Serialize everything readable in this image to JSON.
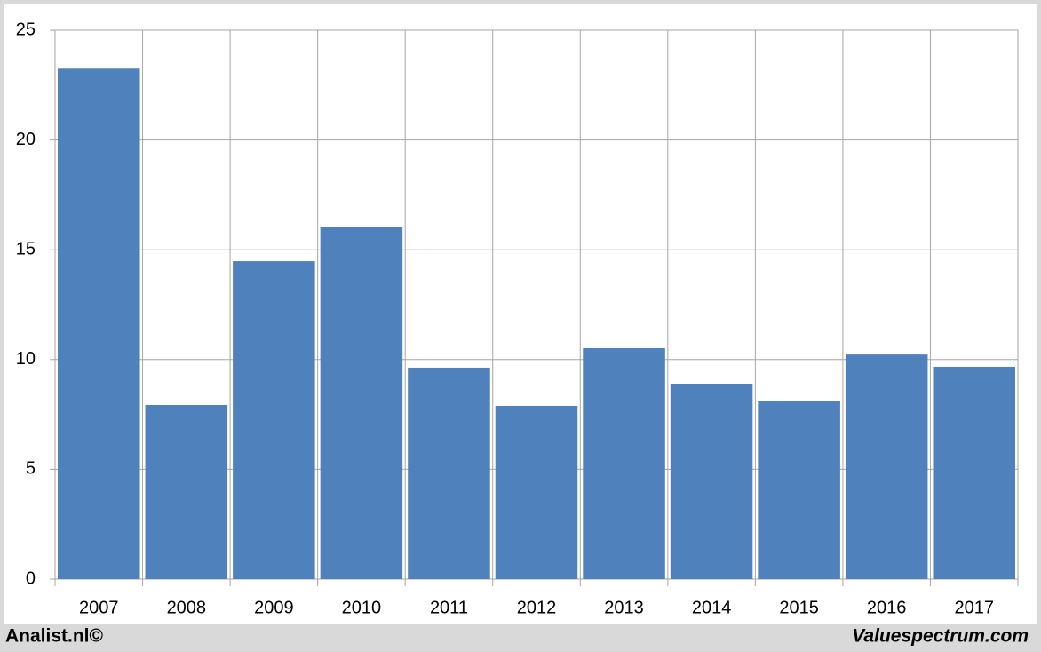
{
  "chart_data": {
    "type": "bar",
    "categories": [
      "2007",
      "2008",
      "2009",
      "2010",
      "2011",
      "2012",
      "2013",
      "2014",
      "2015",
      "2016",
      "2017"
    ],
    "values": [
      23.25,
      7.93,
      14.48,
      16.06,
      9.63,
      7.89,
      10.52,
      8.9,
      8.13,
      10.23,
      9.67
    ],
    "color": "#4f81bd",
    "ylim": [
      0,
      25
    ],
    "yticks": [
      0,
      5,
      10,
      15,
      20,
      25
    ],
    "grid": true,
    "footer": [
      "Analist.nl©",
      "Valuespectrum.com"
    ]
  }
}
